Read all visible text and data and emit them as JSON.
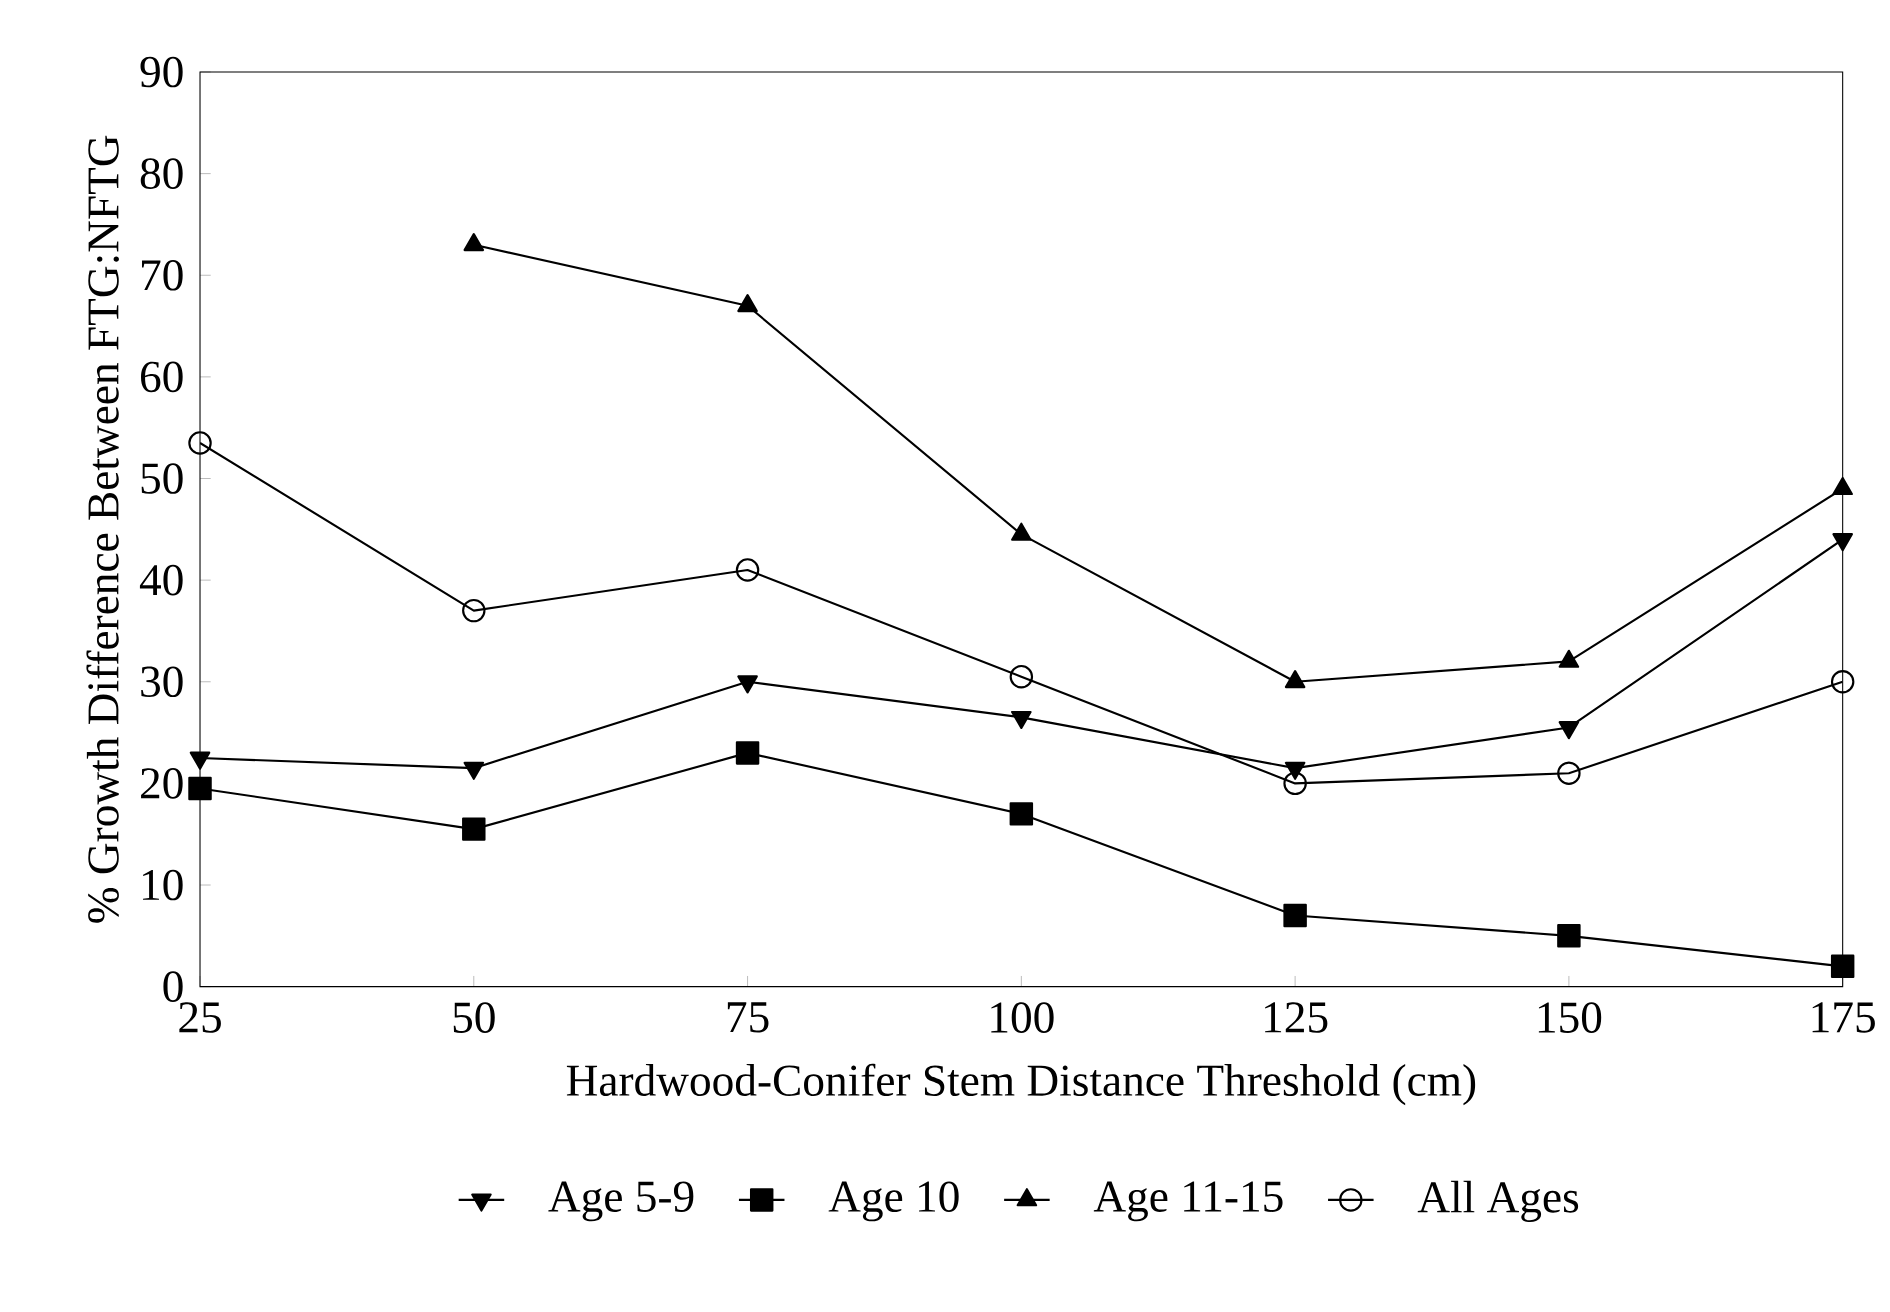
{
  "chart_data": {
    "type": "line",
    "xlabel": "Hardwood-Conifer Stem Distance Threshold (cm)",
    "ylabel": "% Growth Difference Between FTG:NFTG",
    "x": [
      25,
      50,
      75,
      100,
      125,
      150,
      175
    ],
    "series": [
      {
        "name": "Age 5-9",
        "color": "#000000",
        "marker": "triangle-down",
        "values": [
          22.5,
          21.5,
          30,
          26.5,
          21.5,
          25.5,
          44
        ]
      },
      {
        "name": "Age 10",
        "color": "#000000",
        "marker": "square",
        "values": [
          19.5,
          15.5,
          23,
          17,
          7,
          5,
          2
        ]
      },
      {
        "name": "Age 11-15",
        "color": "#000000",
        "marker": "triangle",
        "values": [
          null,
          73,
          67,
          44.5,
          30,
          32,
          49
        ]
      },
      {
        "name": "All Ages",
        "color": "#000000",
        "marker": "circle",
        "values": [
          53.5,
          37,
          41,
          30.5,
          20,
          21,
          30
        ]
      }
    ],
    "xlim": [
      25,
      175
    ],
    "xticks": [
      25,
      50,
      75,
      100,
      125,
      150,
      175
    ],
    "ylim": [
      0,
      90
    ],
    "yticks": [
      0,
      10,
      20,
      30,
      40,
      50,
      60,
      70,
      80,
      90
    ],
    "grid": false,
    "legend": "bottom",
    "line_style": "solid"
  }
}
